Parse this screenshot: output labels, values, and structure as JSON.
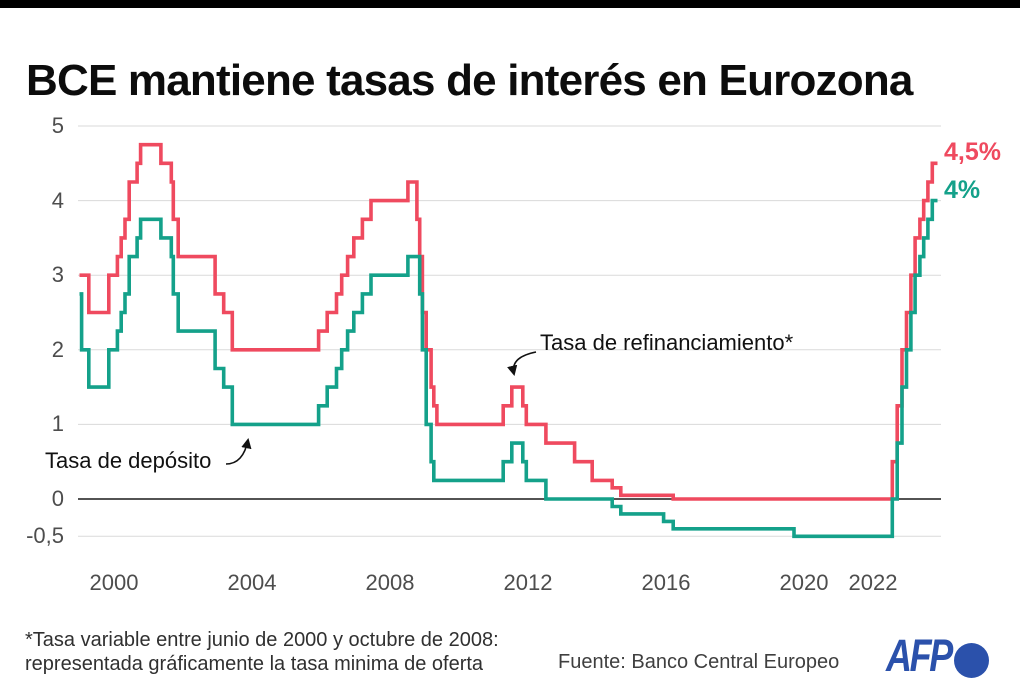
{
  "chart_data": {
    "type": "line",
    "subtype": "step",
    "title": "BCE mantiene tasas de interés en Eurozona",
    "unit": "%",
    "grid": true,
    "x_axis": {
      "end": 2023.87,
      "range": [
        1999,
        2023.87
      ],
      "ticks": [
        {
          "label": "2000",
          "year": 2000
        },
        {
          "label": "2004",
          "year": 2004
        },
        {
          "label": "2008",
          "year": 2008
        },
        {
          "label": "2012",
          "year": 2012
        },
        {
          "label": "2016",
          "year": 2016
        },
        {
          "label": "2020",
          "year": 2020
        },
        {
          "label": "2022",
          "year": 2022
        }
      ]
    },
    "y_axis": {
      "range": [
        -0.5,
        5
      ],
      "ticks": [
        {
          "label": "5",
          "value": 5
        },
        {
          "label": "4",
          "value": 4
        },
        {
          "label": "3",
          "value": 3
        },
        {
          "label": "2",
          "value": 2
        },
        {
          "label": "1",
          "value": 1
        },
        {
          "label": "0",
          "value": 0
        },
        {
          "label": "-0,5",
          "value": -0.5
        }
      ]
    },
    "series": [
      {
        "label": "Tasa de refinanciamiento*",
        "color": "#ef4a5f",
        "end_label": "4,5%",
        "final_value": 4.5,
        "points": [
          [
            1999.0,
            3.0
          ],
          [
            1999.27,
            2.5
          ],
          [
            1999.85,
            3.0
          ],
          [
            2000.1,
            3.25
          ],
          [
            2000.21,
            3.5
          ],
          [
            2000.32,
            3.75
          ],
          [
            2000.44,
            4.25
          ],
          [
            2000.67,
            4.5
          ],
          [
            2000.77,
            4.75
          ],
          [
            2001.36,
            4.5
          ],
          [
            2001.66,
            4.25
          ],
          [
            2001.72,
            3.75
          ],
          [
            2001.86,
            3.25
          ],
          [
            2002.93,
            2.75
          ],
          [
            2003.18,
            2.5
          ],
          [
            2003.43,
            2.0
          ],
          [
            2005.93,
            2.25
          ],
          [
            2006.18,
            2.5
          ],
          [
            2006.45,
            2.75
          ],
          [
            2006.6,
            3.0
          ],
          [
            2006.77,
            3.25
          ],
          [
            2006.95,
            3.5
          ],
          [
            2007.2,
            3.75
          ],
          [
            2007.45,
            4.0
          ],
          [
            2008.52,
            4.25
          ],
          [
            2008.78,
            3.75
          ],
          [
            2008.86,
            3.25
          ],
          [
            2008.94,
            2.5
          ],
          [
            2009.05,
            2.0
          ],
          [
            2009.19,
            1.5
          ],
          [
            2009.27,
            1.25
          ],
          [
            2009.36,
            1.0
          ],
          [
            2011.28,
            1.25
          ],
          [
            2011.53,
            1.5
          ],
          [
            2011.85,
            1.25
          ],
          [
            2011.95,
            1.0
          ],
          [
            2012.52,
            0.75
          ],
          [
            2013.35,
            0.5
          ],
          [
            2013.86,
            0.25
          ],
          [
            2014.44,
            0.15
          ],
          [
            2014.69,
            0.05
          ],
          [
            2016.21,
            0.0
          ],
          [
            2022.56,
            0.5
          ],
          [
            2022.7,
            1.25
          ],
          [
            2022.84,
            2.0
          ],
          [
            2022.97,
            2.5
          ],
          [
            2023.1,
            3.0
          ],
          [
            2023.22,
            3.5
          ],
          [
            2023.36,
            3.75
          ],
          [
            2023.47,
            4.0
          ],
          [
            2023.59,
            4.25
          ],
          [
            2023.72,
            4.5
          ]
        ]
      },
      {
        "label": "Tasa de depósito",
        "color": "#14a18a",
        "end_label": "4%",
        "final_value": 4.0,
        "points": [
          [
            1999.0,
            2.75
          ],
          [
            1999.06,
            2.0
          ],
          [
            1999.27,
            1.5
          ],
          [
            1999.85,
            2.0
          ],
          [
            2000.1,
            2.25
          ],
          [
            2000.21,
            2.5
          ],
          [
            2000.32,
            2.75
          ],
          [
            2000.44,
            3.25
          ],
          [
            2000.67,
            3.5
          ],
          [
            2000.77,
            3.75
          ],
          [
            2001.36,
            3.5
          ],
          [
            2001.66,
            3.25
          ],
          [
            2001.72,
            2.75
          ],
          [
            2001.86,
            2.25
          ],
          [
            2002.93,
            1.75
          ],
          [
            2003.18,
            1.5
          ],
          [
            2003.43,
            1.0
          ],
          [
            2005.93,
            1.25
          ],
          [
            2006.18,
            1.5
          ],
          [
            2006.45,
            1.75
          ],
          [
            2006.6,
            2.0
          ],
          [
            2006.77,
            2.25
          ],
          [
            2006.95,
            2.5
          ],
          [
            2007.2,
            2.75
          ],
          [
            2007.45,
            3.0
          ],
          [
            2008.52,
            3.25
          ],
          [
            2008.86,
            2.75
          ],
          [
            2008.94,
            2.0
          ],
          [
            2009.05,
            1.0
          ],
          [
            2009.19,
            0.5
          ],
          [
            2009.27,
            0.25
          ],
          [
            2011.28,
            0.5
          ],
          [
            2011.53,
            0.75
          ],
          [
            2011.85,
            0.5
          ],
          [
            2011.95,
            0.25
          ],
          [
            2012.52,
            0.0
          ],
          [
            2014.44,
            -0.1
          ],
          [
            2014.69,
            -0.2
          ],
          [
            2015.93,
            -0.3
          ],
          [
            2016.21,
            -0.4
          ],
          [
            2019.71,
            -0.5
          ],
          [
            2022.56,
            0.0
          ],
          [
            2022.7,
            0.75
          ],
          [
            2022.84,
            1.5
          ],
          [
            2022.97,
            2.0
          ],
          [
            2023.1,
            2.5
          ],
          [
            2023.22,
            3.0
          ],
          [
            2023.36,
            3.25
          ],
          [
            2023.47,
            3.5
          ],
          [
            2023.59,
            3.75
          ],
          [
            2023.72,
            4.0
          ]
        ]
      }
    ]
  },
  "footer": {
    "note_line1": "*Tasa variable entre junio de 2000 y octubre de 2008:",
    "note_line2": "representada gráficamente la tasa minima de oferta",
    "source": "Fuente: Banco Central Europeo",
    "logo": {
      "text": "AFP",
      "color": "#2b51ab"
    }
  }
}
